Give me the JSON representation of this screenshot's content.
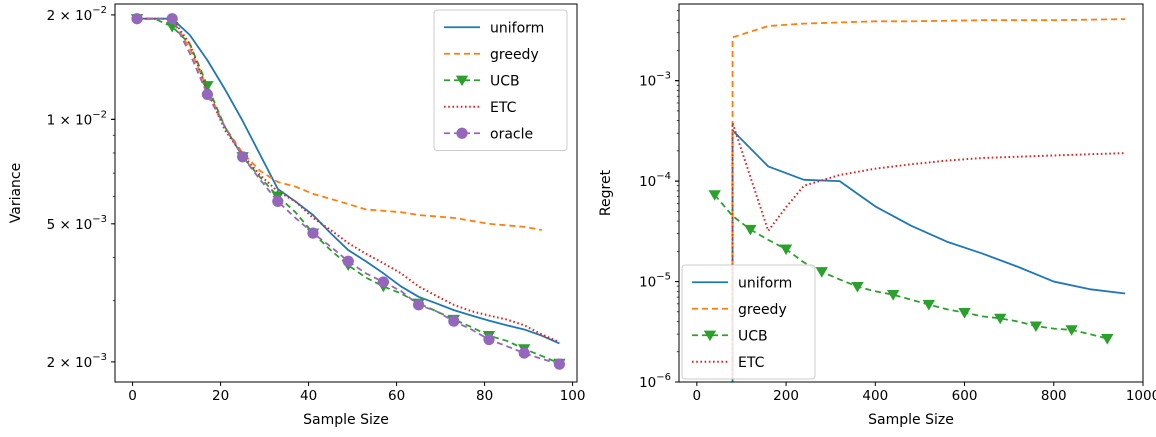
{
  "chart_data": [
    {
      "type": "line",
      "xlabel": "Sample Size",
      "ylabel": "Variance",
      "xlim": [
        -4,
        101
      ],
      "ylim": [
        0.00175,
        0.0215
      ],
      "yscale": "log",
      "xticks": [
        0,
        20,
        40,
        60,
        80,
        100
      ],
      "yticks": [
        {
          "value": 0.002,
          "mant": "2",
          "exp": "−3"
        },
        {
          "value": 0.005,
          "mant": "5",
          "exp": "−3"
        },
        {
          "value": 0.01,
          "mant": "1",
          "exp": "−2"
        },
        {
          "value": 0.02,
          "mant": "2",
          "exp": "−2"
        }
      ],
      "legend_position": "top-right",
      "series": [
        {
          "name": "uniform",
          "color": "#1f77b4",
          "style": "solid",
          "marker": "none",
          "x": [
            1,
            5,
            9,
            13,
            17,
            21,
            25,
            29,
            33,
            37,
            41,
            45,
            49,
            53,
            57,
            61,
            65,
            69,
            73,
            77,
            81,
            85,
            89,
            93,
            97
          ],
          "y": [
            0.0195,
            0.0195,
            0.0195,
            0.0175,
            0.0148,
            0.0122,
            0.0099,
            0.0079,
            0.0063,
            0.0058,
            0.0053,
            0.0047,
            0.0042,
            0.0039,
            0.0036,
            0.0033,
            0.00308,
            0.00295,
            0.00282,
            0.00272,
            0.00263,
            0.00255,
            0.00248,
            0.00238,
            0.00226
          ]
        },
        {
          "name": "greedy",
          "color": "#ff7f0e",
          "style": "dashed",
          "marker": "none",
          "x": [
            1,
            5,
            9,
            13,
            17,
            21,
            25,
            29,
            33,
            37,
            41,
            45,
            49,
            53,
            57,
            61,
            65,
            69,
            73,
            77,
            81,
            85,
            89,
            93,
            97
          ],
          "y": [
            0.0195,
            0.0195,
            0.0195,
            0.016,
            0.0122,
            0.0095,
            0.008,
            0.0071,
            0.0066,
            0.0064,
            0.0061,
            0.0059,
            0.0057,
            0.0055,
            0.00545,
            0.0054,
            0.0053,
            0.00525,
            0.0052,
            0.0051,
            0.005,
            0.00495,
            0.0049,
            0.0048,
            null
          ]
        },
        {
          "name": "UCB",
          "color": "#2ca02c",
          "style": "dashed",
          "marker": "triangle-down",
          "marker_every": 2,
          "x": [
            1,
            5,
            9,
            13,
            17,
            21,
            25,
            29,
            33,
            37,
            41,
            45,
            49,
            53,
            57,
            61,
            65,
            69,
            73,
            77,
            81,
            85,
            89,
            93,
            97
          ],
          "y": [
            0.0195,
            0.0195,
            0.0185,
            0.0165,
            0.0125,
            0.0095,
            0.0078,
            0.0068,
            0.006,
            0.0054,
            0.0047,
            0.0042,
            0.0038,
            0.0035,
            0.0033,
            0.00315,
            0.00295,
            0.0028,
            0.00265,
            0.00252,
            0.00238,
            0.0023,
            0.00218,
            0.00208,
            0.00198
          ]
        },
        {
          "name": "ETC",
          "color": "#d62728",
          "style": "dotted",
          "marker": "none",
          "x": [
            1,
            5,
            9,
            13,
            17,
            21,
            25,
            29,
            33,
            37,
            41,
            45,
            49,
            53,
            57,
            61,
            65,
            69,
            73,
            77,
            81,
            85,
            89,
            93,
            97
          ],
          "y": [
            0.0195,
            0.0195,
            0.0195,
            0.0165,
            0.0121,
            0.0093,
            0.0079,
            0.0069,
            0.0062,
            0.0058,
            0.0052,
            0.0048,
            0.0044,
            0.0041,
            0.00385,
            0.0036,
            0.0033,
            0.0031,
            0.00292,
            0.0028,
            0.00272,
            0.00265,
            0.00255,
            0.0024,
            0.00228
          ]
        },
        {
          "name": "oracle",
          "color": "#9467bd",
          "style": "dashed",
          "marker": "circle",
          "marker_every": 2,
          "x": [
            1,
            5,
            9,
            13,
            17,
            21,
            25,
            29,
            33,
            37,
            41,
            45,
            49,
            53,
            57,
            61,
            65,
            69,
            73,
            77,
            81,
            85,
            89,
            93,
            97
          ],
          "y": [
            0.0195,
            0.0195,
            0.0195,
            0.0155,
            0.0118,
            0.0095,
            0.0078,
            0.0067,
            0.0058,
            0.0052,
            0.0047,
            0.0043,
            0.0039,
            0.0036,
            0.0034,
            0.0032,
            0.00292,
            0.0028,
            0.00262,
            0.00248,
            0.00232,
            0.00222,
            0.00212,
            0.00204,
            0.00197
          ]
        }
      ]
    },
    {
      "type": "line",
      "xlabel": "Sample Size",
      "ylabel": "Regret",
      "xlim": [
        -40,
        1000
      ],
      "ylim": [
        1e-06,
        0.0058
      ],
      "yscale": "log",
      "xticks": [
        0,
        200,
        400,
        600,
        800,
        1000
      ],
      "yticks": [
        {
          "value": 1e-06,
          "mant": "",
          "exp": "−6"
        },
        {
          "value": 1e-05,
          "mant": "",
          "exp": "−5"
        },
        {
          "value": 0.0001,
          "mant": "",
          "exp": "−4"
        },
        {
          "value": 0.001,
          "mant": "",
          "exp": "−3"
        }
      ],
      "legend_position": "bottom-left",
      "series": [
        {
          "name": "uniform",
          "color": "#1f77b4",
          "style": "solid",
          "marker": "none",
          "drop_from_bottom": true,
          "x": [
            80,
            160,
            240,
            320,
            400,
            480,
            560,
            640,
            720,
            800,
            880,
            960
          ],
          "y": [
            0.00032,
            0.00014,
            0.000103,
            0.0001,
            5.6e-05,
            3.6e-05,
            2.5e-05,
            1.9e-05,
            1.4e-05,
            1e-05,
            8.4e-06,
            7.6e-06
          ]
        },
        {
          "name": "greedy",
          "color": "#ff7f0e",
          "style": "dashed",
          "marker": "none",
          "drop_from_bottom": true,
          "x": [
            80,
            160,
            240,
            320,
            400,
            480,
            560,
            640,
            720,
            800,
            880,
            960
          ],
          "y": [
            0.0027,
            0.0035,
            0.0037,
            0.0038,
            0.0039,
            0.0039,
            0.00395,
            0.004,
            0.004,
            0.004,
            0.00405,
            0.0041
          ]
        },
        {
          "name": "UCB",
          "color": "#2ca02c",
          "style": "dashed",
          "marker": "triangle-down",
          "marker_every": 2,
          "x": [
            40,
            80,
            120,
            160,
            200,
            240,
            280,
            320,
            360,
            400,
            440,
            480,
            520,
            560,
            600,
            640,
            680,
            720,
            760,
            800,
            840,
            880,
            920
          ],
          "y": [
            7.3e-05,
            4.5e-05,
            3.3e-05,
            2.6e-05,
            2.1e-05,
            1.55e-05,
            1.25e-05,
            1.05e-05,
            8.9e-06,
            8e-06,
            7.4e-06,
            6.6e-06,
            5.9e-06,
            5.3e-06,
            4.9e-06,
            4.5e-06,
            4.3e-06,
            4e-06,
            3.6e-06,
            3.4e-06,
            3.3e-06,
            3e-06,
            2.7e-06
          ]
        },
        {
          "name": "ETC",
          "color": "#d62728",
          "style": "dotted",
          "marker": "none",
          "drop_from_bottom": true,
          "x": [
            80,
            160,
            200,
            240,
            320,
            400,
            480,
            560,
            640,
            720,
            800,
            880,
            960
          ],
          "y": [
            0.00038,
            3.2e-05,
            5.5e-05,
            9e-05,
            0.000115,
            0.000133,
            0.000147,
            0.00016,
            0.00017,
            0.000175,
            0.00018,
            0.000185,
            0.00019
          ]
        }
      ]
    }
  ]
}
